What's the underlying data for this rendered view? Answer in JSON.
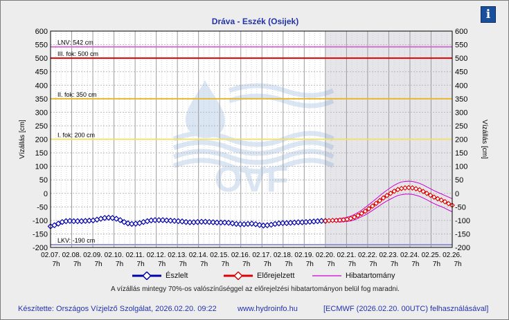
{
  "title": "Dráva - Eszék (Osijek)",
  "info_icon": "info-icon",
  "legend": {
    "observed": "Észlelt",
    "forecast": "Előrejelzett",
    "band": "Hibatartomány"
  },
  "note": "A vízállás mintegy 70%-os valószínűséggel az előrejelzési hibatartományon belül fog maradni.",
  "footer": {
    "author": "Készítette: Országos Vízjelző Szolgálat, 2026.02.20. 09:22",
    "url": "www.hydroinfo.hu",
    "source": "[ECMWF (2026.02.20. 00UTC) felhasználásával]"
  },
  "watermark": "OVF",
  "colors": {
    "observed": "#0000aa",
    "forecast": "#dd0000",
    "band": "#cc00cc",
    "lnv": "#d070d0",
    "iii": "#dd0000",
    "ii": "#e8b830",
    "i": "#f0e070",
    "lkv": "#9090d0"
  },
  "chart_data": {
    "type": "line",
    "ylabel": "Vízállás [cm]",
    "ylim": [
      -200,
      600
    ],
    "yticks": [
      -200,
      -150,
      -100,
      -50,
      0,
      50,
      100,
      150,
      200,
      250,
      300,
      350,
      400,
      450,
      500,
      550,
      600
    ],
    "xlim": [
      "02.07. 7h",
      "02.26. 7h"
    ],
    "x_ticks": [
      {
        "date": "02.07.",
        "hour": "7h"
      },
      {
        "date": "02.08.",
        "hour": "7h"
      },
      {
        "date": "02.09.",
        "hour": "7h"
      },
      {
        "date": "02.10.",
        "hour": "7h"
      },
      {
        "date": "02.11.",
        "hour": "7h"
      },
      {
        "date": "02.12.",
        "hour": "7h"
      },
      {
        "date": "02.13.",
        "hour": "7h"
      },
      {
        "date": "02.14.",
        "hour": "7h"
      },
      {
        "date": "02.15.",
        "hour": "7h"
      },
      {
        "date": "02.16.",
        "hour": "7h"
      },
      {
        "date": "02.17.",
        "hour": "7h"
      },
      {
        "date": "02.18.",
        "hour": "7h"
      },
      {
        "date": "02.19.",
        "hour": "7h"
      },
      {
        "date": "02.20.",
        "hour": "7h"
      },
      {
        "date": "02.21.",
        "hour": "7h"
      },
      {
        "date": "02.22.",
        "hour": "7h"
      },
      {
        "date": "02.23.",
        "hour": "7h"
      },
      {
        "date": "02.24.",
        "hour": "7h"
      },
      {
        "date": "02.25.",
        "hour": "7h"
      },
      {
        "date": "02.26.",
        "hour": "7h"
      }
    ],
    "forecast_start": "02.20. 7h",
    "thresholds": [
      {
        "label": "LNV: 542 cm",
        "value": 542,
        "color": "#d070d0"
      },
      {
        "label": "III. fok: 500 cm",
        "value": 500,
        "color": "#dd0000"
      },
      {
        "label": "II. fok: 350 cm",
        "value": 350,
        "color": "#e8b830"
      },
      {
        "label": "I. fok: 200 cm",
        "value": 200,
        "color": "#f0e070"
      },
      {
        "label": "LKV: -190 cm",
        "value": -190,
        "color": "#9090d0"
      }
    ],
    "series": [
      {
        "name": "Észlelt",
        "values": [
          -122,
          -118,
          -112,
          -106,
          -103,
          -102,
          -103,
          -103,
          -103,
          -102,
          -101,
          -100,
          -97,
          -94,
          -91,
          -90,
          -91,
          -94,
          -99,
          -106,
          -111,
          -113,
          -112,
          -110,
          -106,
          -103,
          -100,
          -99,
          -99,
          -99,
          -100,
          -101,
          -102,
          -103,
          -104,
          -106,
          -107,
          -107,
          -106,
          -105,
          -105,
          -106,
          -107,
          -108,
          -108,
          -108,
          -109,
          -111,
          -113,
          -114,
          -114,
          -113,
          -112,
          -114,
          -117,
          -119,
          -118,
          -116,
          -113,
          -111,
          -110,
          -110,
          -109,
          -108,
          -107,
          -107,
          -106,
          -105,
          -104,
          -103,
          -102,
          -102
        ]
      },
      {
        "name": "Előrejelzett",
        "values": [
          -102,
          -101,
          -100,
          -100,
          -99,
          -98,
          -96,
          -93,
          -88,
          -82,
          -74,
          -66,
          -57,
          -47,
          -37,
          -27,
          -17,
          -8,
          0,
          8,
          14,
          18,
          20,
          21,
          20,
          17,
          13,
          7,
          0,
          -7,
          -14,
          -20,
          -25,
          -31,
          -38,
          -44
        ]
      },
      {
        "name": "Hibatartomány",
        "upper": [
          -100,
          -99,
          -97,
          -95,
          -93,
          -91,
          -88,
          -84,
          -78,
          -71,
          -62,
          -52,
          -42,
          -31,
          -20,
          -9,
          2,
          12,
          21,
          30,
          37,
          42,
          44,
          45,
          44,
          41,
          37,
          31,
          24,
          17,
          10,
          4,
          -2,
          -8,
          -14,
          -20
        ],
        "lower": [
          -104,
          -104,
          -104,
          -105,
          -106,
          -105,
          -104,
          -102,
          -98,
          -93,
          -86,
          -80,
          -72,
          -63,
          -54,
          -45,
          -36,
          -28,
          -21,
          -14,
          -8,
          -5,
          -3,
          -3,
          -4,
          -7,
          -11,
          -17,
          -24,
          -31,
          -38,
          -44,
          -49,
          -55,
          -62,
          -68
        ]
      }
    ]
  }
}
